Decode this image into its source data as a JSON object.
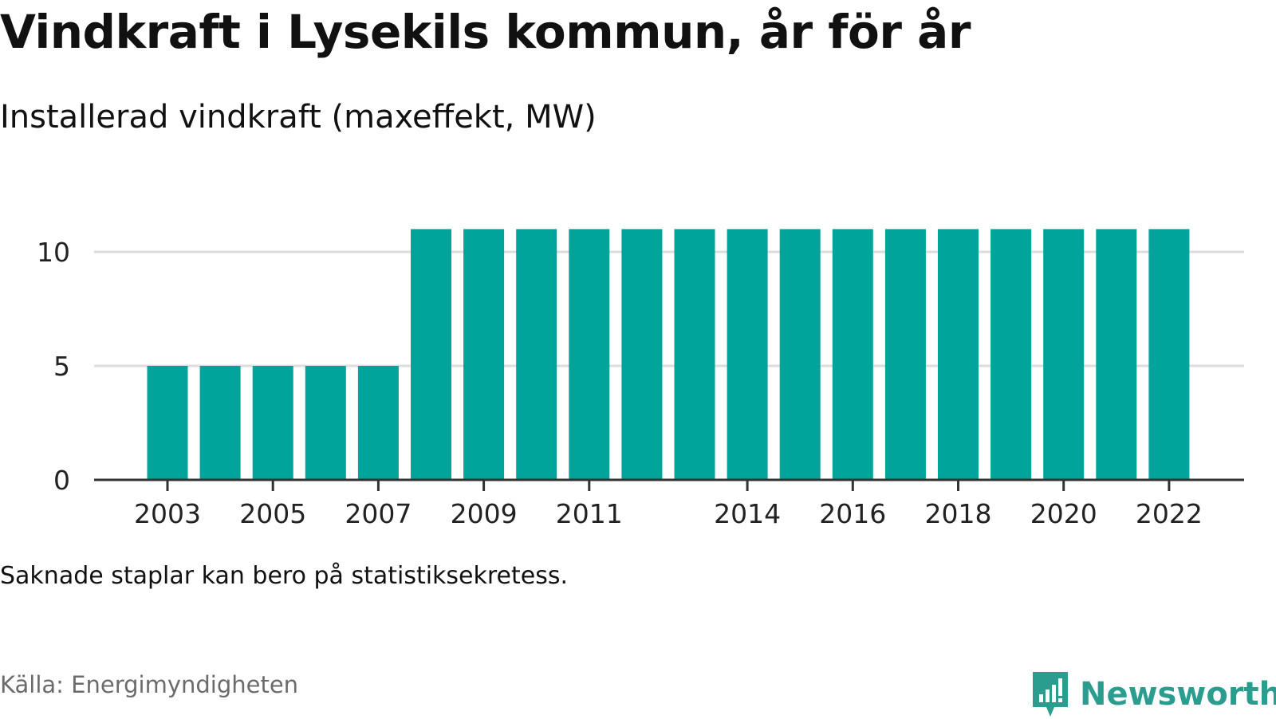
{
  "header": {
    "title": "Vindkraft i Lysekils kommun, år för år",
    "subtitle": "Installerad vindkraft (maxeffekt, MW)"
  },
  "footer": {
    "note": "Saknade staplar kan bero på statistiksekretess.",
    "source": "Källa: Energimyndigheten",
    "brand": "Newsworthy"
  },
  "colors": {
    "bar": "#00a49a",
    "grid": "#dddddd",
    "axis": "#333333",
    "brand": "#2a9d8f"
  },
  "icons": {
    "brand": "newsworthy-logo-icon"
  },
  "chart_data": {
    "type": "bar",
    "categories": [
      "2003",
      "2004",
      "2005",
      "2006",
      "2007",
      "2008",
      "2009",
      "2010",
      "2011",
      "2012",
      "2013",
      "2014",
      "2015",
      "2016",
      "2017",
      "2018",
      "2019",
      "2020",
      "2021",
      "2022"
    ],
    "values": [
      5,
      5,
      5,
      5,
      5,
      11,
      11,
      11,
      11,
      11,
      11,
      11,
      11,
      11,
      11,
      11,
      11,
      11,
      11,
      11
    ],
    "title": "Vindkraft i Lysekils kommun, år för år",
    "subtitle": "Installerad vindkraft (maxeffekt, MW)",
    "xlabel": "",
    "ylabel": "",
    "ylim": [
      0,
      11
    ],
    "yticks": [
      "0",
      "5",
      "10"
    ],
    "xtick_labels": [
      "2003",
      "2005",
      "2007",
      "2009",
      "2011",
      "2014",
      "2016",
      "2018",
      "2020",
      "2022"
    ],
    "grid": true,
    "legend": "none"
  }
}
